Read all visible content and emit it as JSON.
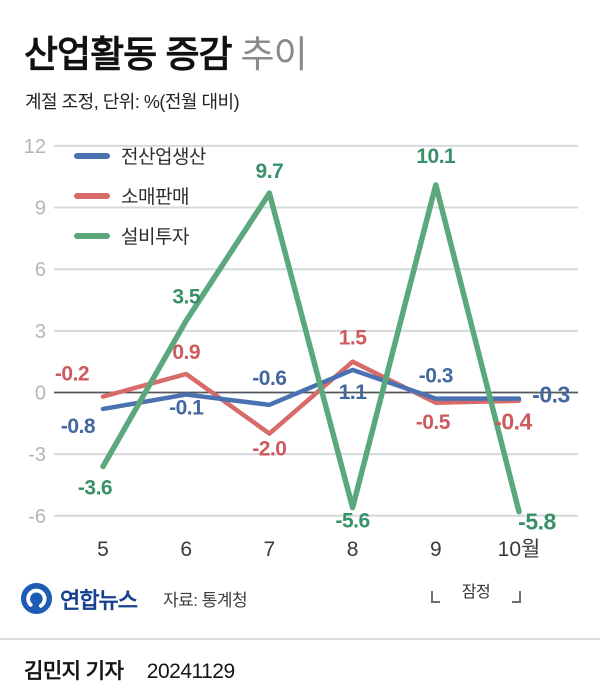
{
  "header": {
    "title_bold": "산업활동 증감",
    "title_light": "추이",
    "subtitle": "계절 조정, 단위: %(전월 대비)"
  },
  "chart_data": {
    "type": "line",
    "categories": [
      "5",
      "6",
      "7",
      "8",
      "9",
      "10월"
    ],
    "series": [
      {
        "name": "전산업생산",
        "color": "#4a72b2",
        "label_color": "#44679f",
        "values": [
          -0.8,
          -0.1,
          -0.6,
          1.1,
          -0.3,
          -0.3
        ]
      },
      {
        "name": "소매판매",
        "color": "#d96a6a",
        "label_color": "#cc5a5e",
        "values": [
          -0.2,
          0.9,
          -2.0,
          1.5,
          -0.5,
          -0.4
        ]
      },
      {
        "name": "설비투자",
        "color": "#5aa87b",
        "label_color": "#39916a",
        "values": [
          -3.6,
          3.5,
          9.7,
          -5.6,
          10.1,
          -5.8
        ]
      }
    ],
    "yticks": [
      12,
      9,
      6,
      3,
      0,
      -3,
      -6
    ],
    "ylim": [
      -6,
      12
    ],
    "grid": true,
    "legend_position": "top-left"
  },
  "annotations": {
    "provisional": "잠정"
  },
  "footer": {
    "logo_text": "연합뉴스",
    "source_label": "자료: 통계청",
    "byline": "김민지 기자",
    "date": "20241129"
  }
}
